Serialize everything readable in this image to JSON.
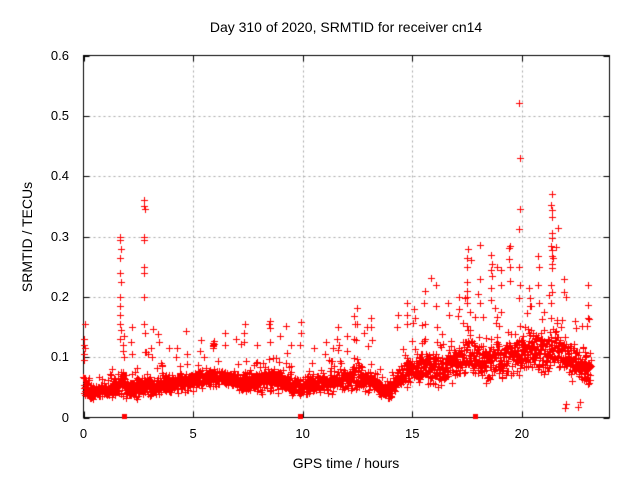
{
  "chart_data": {
    "type": "scatter",
    "title": "Day 310 of 2020, SRMTID for receiver cn14",
    "xlabel": "GPS time / hours",
    "ylabel": "SRMTID / TECUs",
    "xlim": [
      0,
      24
    ],
    "ylim": [
      0,
      0.6
    ],
    "xticks": [
      0,
      5,
      10,
      15,
      20
    ],
    "xtick_labels": [
      "0",
      "5",
      "10",
      "15",
      "20"
    ],
    "yticks": [
      0,
      0.1,
      0.2,
      0.3,
      0.4,
      0.5,
      0.6
    ],
    "ytick_labels": [
      "0",
      "0.1",
      "0.2",
      "0.3",
      "0.4",
      "0.5",
      "0.6"
    ],
    "grid": true,
    "legend": "none",
    "marker": "plus",
    "marker_size_px": 7,
    "marker_color": "#ff0000",
    "grid_color": "#a8a8a8",
    "axis_color": "#000000",
    "background_color": "#ffffff",
    "zero_square_marker_color": "#ff0000",
    "zero_square_hours": [
      1.87,
      9.9,
      17.87
    ],
    "outlier_columns": [
      [
        0.05,
        [
          0.155,
          0.13,
          0.12,
          0.115,
          0.105,
          0.095
        ]
      ],
      [
        1.68,
        [
          0.3,
          0.295,
          0.28,
          0.265,
          0.24,
          0.225,
          0.2,
          0.185,
          0.17,
          0.155,
          0.145,
          0.13
        ]
      ],
      [
        1.82,
        [
          0.135,
          0.12,
          0.11,
          0.1
        ]
      ],
      [
        2.2,
        [
          0.15,
          0.125,
          0.105
        ]
      ],
      [
        2.78,
        [
          0.36,
          0.35,
          0.345,
          0.3,
          0.295,
          0.25,
          0.24,
          0.2,
          0.155,
          0.14
        ]
      ],
      [
        3.1,
        [
          0.115,
          0.1
        ]
      ],
      [
        3.45,
        [
          0.125
        ]
      ],
      [
        4.25,
        [
          0.115,
          0.1
        ]
      ],
      [
        4.75,
        [
          0.105
        ]
      ],
      [
        5.3,
        [
          0.11
        ]
      ],
      [
        5.92,
        [
          0.126,
          0.123,
          0.121,
          0.119,
          0.116,
          0.12,
          0.122
        ]
      ],
      [
        6.45,
        [
          0.14,
          0.12
        ]
      ],
      [
        7.0,
        [
          0.13
        ]
      ],
      [
        7.35,
        [
          0.155,
          0.14,
          0.125
        ]
      ],
      [
        7.9,
        [
          0.12
        ]
      ],
      [
        8.5,
        [
          0.16,
          0.148,
          0.125
        ]
      ],
      [
        9.0,
        [
          0.135
        ]
      ],
      [
        9.45,
        [
          0.12
        ]
      ],
      [
        9.9,
        [
          0.158,
          0.14,
          0.12
        ]
      ],
      [
        10.5,
        [
          0.115
        ]
      ],
      [
        11.1,
        [
          0.125
        ]
      ],
      [
        11.6,
        [
          0.15,
          0.13
        ]
      ],
      [
        12.05,
        [
          0.135
        ]
      ],
      [
        12.35,
        [
          0.168,
          0.155,
          0.13
        ]
      ],
      [
        12.8,
        [
          0.14
        ]
      ],
      [
        13.15,
        [
          0.15,
          0.128
        ]
      ],
      [
        14.3,
        [
          0.17,
          0.15
        ]
      ],
      [
        14.75,
        [
          0.19,
          0.17,
          0.155
        ]
      ],
      [
        15.1,
        [
          0.18,
          0.165
        ]
      ],
      [
        15.55,
        [
          0.21,
          0.19,
          0.155
        ]
      ],
      [
        16.1,
        [
          0.22,
          0.185,
          0.15
        ]
      ],
      [
        16.65,
        [
          0.19,
          0.17
        ]
      ],
      [
        17.15,
        [
          0.2,
          0.18
        ]
      ],
      [
        17.5,
        [
          0.28,
          0.265,
          0.25,
          0.225,
          0.21,
          0.2,
          0.19
        ]
      ],
      [
        18.05,
        [
          0.23,
          0.205,
          0.19
        ]
      ],
      [
        18.6,
        [
          0.27,
          0.255,
          0.245,
          0.235,
          0.215,
          0.195
        ]
      ],
      [
        19.05,
        [
          0.245,
          0.22
        ]
      ],
      [
        19.5,
        [
          0.285,
          0.25
        ]
      ],
      [
        19.9,
        [
          0.522,
          0.43,
          0.345,
          0.312,
          0.25,
          0.22,
          0.198
        ]
      ],
      [
        20.35,
        [
          0.215,
          0.198,
          0.185
        ]
      ],
      [
        20.75,
        [
          0.25,
          0.22,
          0.19
        ]
      ],
      [
        21.35,
        [
          0.37,
          0.352,
          0.344,
          0.332,
          0.305,
          0.298,
          0.285,
          0.278,
          0.268,
          0.255,
          0.248,
          0.22,
          0.208,
          0.19,
          0.165
        ]
      ],
      [
        21.9,
        [
          0.23,
          0.208
        ]
      ],
      [
        22.0,
        [
          0.022,
          0.016
        ]
      ],
      [
        22.45,
        [
          0.16,
          0.148
        ]
      ],
      [
        22.6,
        [
          0.025,
          0.018
        ]
      ],
      [
        22.98,
        [
          0.219,
          0.187,
          0.165,
          0.152
        ]
      ]
    ],
    "baseline_noise": {
      "seed": 20310,
      "n_points": 2400,
      "x_start": 0.0,
      "x_end": 23.15,
      "y_min_clamp": 0.008,
      "envelope_hour_mean_halfwidth": [
        [
          0.0,
          0.05,
          0.028
        ],
        [
          0.4,
          0.04,
          0.015
        ],
        [
          0.9,
          0.045,
          0.018
        ],
        [
          1.4,
          0.048,
          0.02
        ],
        [
          1.75,
          0.06,
          0.035
        ],
        [
          2.1,
          0.045,
          0.018
        ],
        [
          2.8,
          0.055,
          0.03
        ],
        [
          3.3,
          0.05,
          0.02
        ],
        [
          4.2,
          0.058,
          0.022
        ],
        [
          5.0,
          0.062,
          0.022
        ],
        [
          5.9,
          0.068,
          0.022
        ],
        [
          6.8,
          0.062,
          0.022
        ],
        [
          7.6,
          0.058,
          0.024
        ],
        [
          8.5,
          0.065,
          0.026
        ],
        [
          9.3,
          0.058,
          0.024
        ],
        [
          10.0,
          0.05,
          0.02
        ],
        [
          10.8,
          0.058,
          0.022
        ],
        [
          11.7,
          0.062,
          0.026
        ],
        [
          12.4,
          0.066,
          0.028
        ],
        [
          13.2,
          0.058,
          0.026
        ],
        [
          13.9,
          0.042,
          0.02
        ],
        [
          14.6,
          0.075,
          0.034
        ],
        [
          15.4,
          0.088,
          0.038
        ],
        [
          16.2,
          0.082,
          0.038
        ],
        [
          17.0,
          0.09,
          0.042
        ],
        [
          17.6,
          0.105,
          0.05
        ],
        [
          18.3,
          0.09,
          0.046
        ],
        [
          19.2,
          0.1,
          0.048
        ],
        [
          20.1,
          0.108,
          0.05
        ],
        [
          21.0,
          0.108,
          0.05
        ],
        [
          21.6,
          0.115,
          0.048
        ],
        [
          22.3,
          0.09,
          0.04
        ],
        [
          22.9,
          0.085,
          0.04
        ],
        [
          23.15,
          0.08,
          0.035
        ]
      ]
    }
  }
}
